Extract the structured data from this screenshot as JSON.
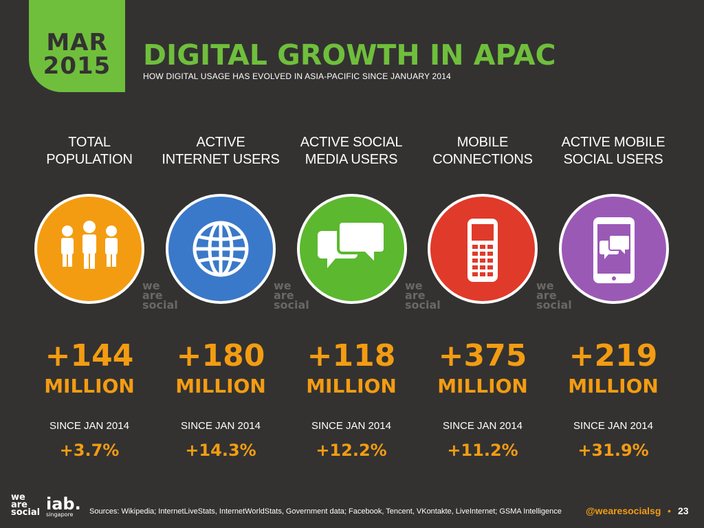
{
  "header": {
    "month": "MAR",
    "year": "2015",
    "title": "DIGITAL GROWTH IN APAC",
    "subtitle": "HOW DIGITAL USAGE HAS EVOLVED IN ASIA-PACIFIC SINCE JANUARY 2014"
  },
  "stats": [
    {
      "label_line1": "TOTAL",
      "label_line2": "POPULATION",
      "icon": "people-icon",
      "color": "#f39c12",
      "value": "+144",
      "unit": "MILLION",
      "since": "SINCE JAN 2014",
      "pct": "+3.7%"
    },
    {
      "label_line1": "ACTIVE",
      "label_line2": "INTERNET USERS",
      "icon": "globe-icon",
      "color": "#3a79c9",
      "value": "+180",
      "unit": "MILLION",
      "since": "SINCE JAN 2014",
      "pct": "+14.3%"
    },
    {
      "label_line1": "ACTIVE SOCIAL",
      "label_line2": "MEDIA USERS",
      "icon": "chat-bubbles-icon",
      "color": "#5cb82f",
      "value": "+118",
      "unit": "MILLION",
      "since": "SINCE JAN 2014",
      "pct": "+12.2%"
    },
    {
      "label_line1": "MOBILE",
      "label_line2": "CONNECTIONS",
      "icon": "mobile-phone-icon",
      "color": "#e03a2a",
      "value": "+375",
      "unit": "MILLION",
      "since": "SINCE JAN 2014",
      "pct": "+11.2%"
    },
    {
      "label_line1": "ACTIVE MOBILE",
      "label_line2": "SOCIAL USERS",
      "icon": "mobile-chat-icon",
      "color": "#9b59b6",
      "value": "+219",
      "unit": "MILLION",
      "since": "SINCE JAN 2014",
      "pct": "+31.9%"
    }
  ],
  "watermark": {
    "line1": "we",
    "line2": "are",
    "line3": "social"
  },
  "footer": {
    "logo_line1": "we",
    "logo_line2": "are",
    "logo_line3": "social",
    "iab": "iab.",
    "iab_sub": "singapore",
    "sources": "Sources: Wikipedia; InternetLiveStats, InternetWorldStats, Government data; Facebook, Tencent, VKontakte, LiveInternet; GSMA Intelligence",
    "handle": "@wearesocialsg",
    "bullet": "•",
    "page": "23"
  }
}
